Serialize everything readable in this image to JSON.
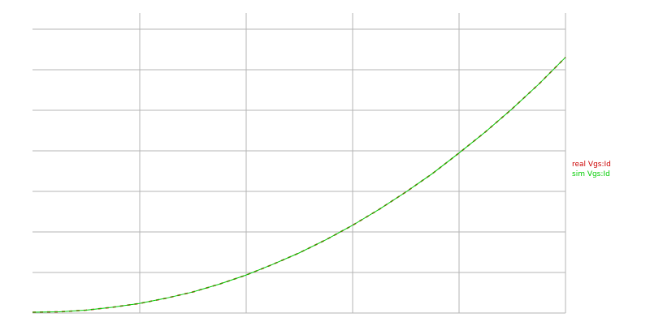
{
  "chart_data": {
    "type": "line",
    "title": "",
    "xlabel": "",
    "ylabel": "",
    "grid": true,
    "legend_placement": "right",
    "xlim": [
      0,
      5
    ],
    "ylim": [
      0,
      7.3
    ],
    "x": [
      0,
      0.25,
      0.5,
      0.75,
      1,
      1.25,
      1.5,
      1.75,
      2,
      2.25,
      2.5,
      2.75,
      3,
      3.25,
      3.5,
      3.75,
      4,
      4.25,
      4.5,
      4.75,
      5
    ],
    "series": [
      {
        "name": "real Vgs:Id",
        "color": "#cc0000",
        "values": [
          0.02,
          0.03,
          0.07,
          0.14,
          0.23,
          0.36,
          0.51,
          0.7,
          0.92,
          1.18,
          1.46,
          1.78,
          2.13,
          2.52,
          2.94,
          3.39,
          3.89,
          4.41,
          4.97,
          5.57,
          6.22
        ]
      },
      {
        "name": "sim Vgs:Id",
        "color": "#00cc00",
        "values": [
          0.02,
          0.03,
          0.07,
          0.14,
          0.23,
          0.36,
          0.51,
          0.7,
          0.92,
          1.18,
          1.46,
          1.78,
          2.13,
          2.52,
          2.94,
          3.39,
          3.89,
          4.41,
          4.97,
          5.57,
          6.22
        ]
      }
    ]
  }
}
